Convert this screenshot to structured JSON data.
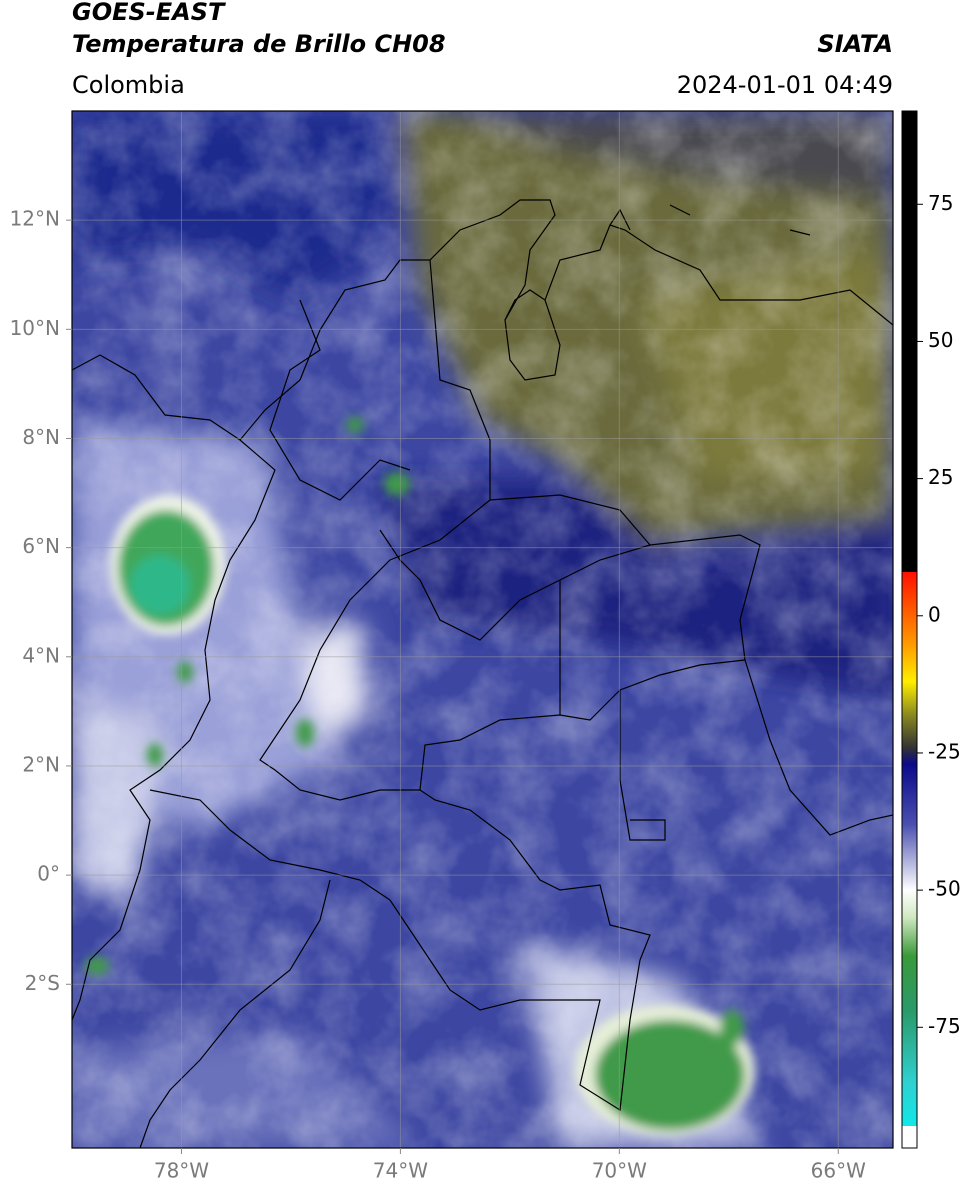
{
  "header": {
    "title": "GOES-EAST",
    "subtitle": "Temperatura de Brillo CH08",
    "region": "Colombia",
    "source": "SIATA",
    "datetime": "2024-01-01 04:49"
  },
  "map": {
    "xlim": [
      -80,
      -65
    ],
    "ylim": [
      -5,
      14
    ],
    "xticks": [
      {
        "value": -78,
        "label": "78°W"
      },
      {
        "value": -74,
        "label": "74°W"
      },
      {
        "value": -70,
        "label": "70°W"
      },
      {
        "value": -66,
        "label": "66°W"
      }
    ],
    "yticks": [
      {
        "value": -2,
        "label": "2°S"
      },
      {
        "value": 0,
        "label": "0°"
      },
      {
        "value": 2,
        "label": "2°N"
      },
      {
        "value": 4,
        "label": "4°N"
      },
      {
        "value": 6,
        "label": "6°N"
      },
      {
        "value": 8,
        "label": "8°N"
      },
      {
        "value": 10,
        "label": "10°N"
      },
      {
        "value": 12,
        "label": "12°N"
      }
    ],
    "grid": true
  },
  "colorbar": {
    "lim": [
      -97,
      92
    ],
    "ticks": [
      -75,
      -50,
      -25,
      0,
      25,
      50,
      75
    ],
    "stops": [
      {
        "value": 92,
        "color": "#000000"
      },
      {
        "value": 8,
        "color": "#000000"
      },
      {
        "value": 8,
        "color": "#ff1000"
      },
      {
        "value": -5,
        "color": "#ff9900"
      },
      {
        "value": -12,
        "color": "#ffee00"
      },
      {
        "value": -18,
        "color": "#8a8a20"
      },
      {
        "value": -24,
        "color": "#333333"
      },
      {
        "value": -27,
        "color": "#0a0a8a"
      },
      {
        "value": -38,
        "color": "#4a50b0"
      },
      {
        "value": -50,
        "color": "#ffffff"
      },
      {
        "value": -55,
        "color": "#cfe8c0"
      },
      {
        "value": -62,
        "color": "#3a9a3a"
      },
      {
        "value": -72,
        "color": "#2a9a6a"
      },
      {
        "value": -85,
        "color": "#30d0d0"
      },
      {
        "value": -93,
        "color": "#10e8e8"
      },
      {
        "value": -93,
        "color": "#ffffff"
      },
      {
        "value": -97,
        "color": "#ffffff"
      }
    ]
  }
}
